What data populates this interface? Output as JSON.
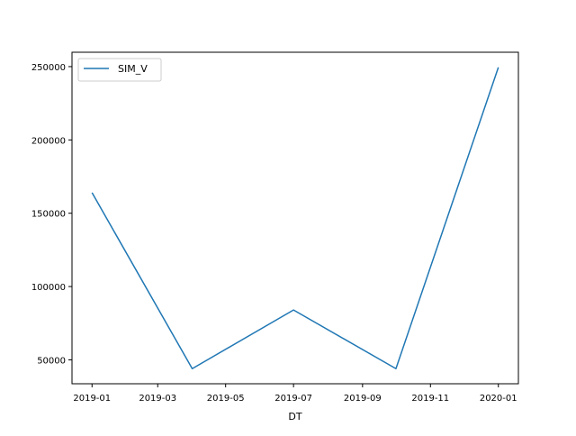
{
  "chart_data": {
    "type": "line",
    "xlabel": "DT",
    "ylabel": "",
    "x": [
      "2019-01-01",
      "2019-04-01",
      "2019-07-01",
      "2019-10-01",
      "2020-01-01"
    ],
    "series": [
      {
        "name": "SIM_V",
        "color": "#1f77b4",
        "values": [
          164000,
          44000,
          84000,
          44000,
          249500
        ]
      }
    ],
    "x_ticks": [
      {
        "date": "2019-01-01",
        "label": "2019-01"
      },
      {
        "date": "2019-03-01",
        "label": "2019-03"
      },
      {
        "date": "2019-05-01",
        "label": "2019-05"
      },
      {
        "date": "2019-07-01",
        "label": "2019-07"
      },
      {
        "date": "2019-09-01",
        "label": "2019-09"
      },
      {
        "date": "2019-11-01",
        "label": "2019-11"
      },
      {
        "date": "2020-01-01",
        "label": "2020-01"
      }
    ],
    "y_ticks": [
      {
        "value": 50000,
        "label": "50000"
      },
      {
        "value": 100000,
        "label": "100000"
      },
      {
        "value": 150000,
        "label": "150000"
      },
      {
        "value": 200000,
        "label": "200000"
      },
      {
        "value": 250000,
        "label": "250000"
      }
    ],
    "xlim": [
      "2018-12-14",
      "2020-01-19"
    ],
    "ylim": [
      33700,
      259800
    ],
    "grid": false,
    "legend_position": "top-left"
  }
}
